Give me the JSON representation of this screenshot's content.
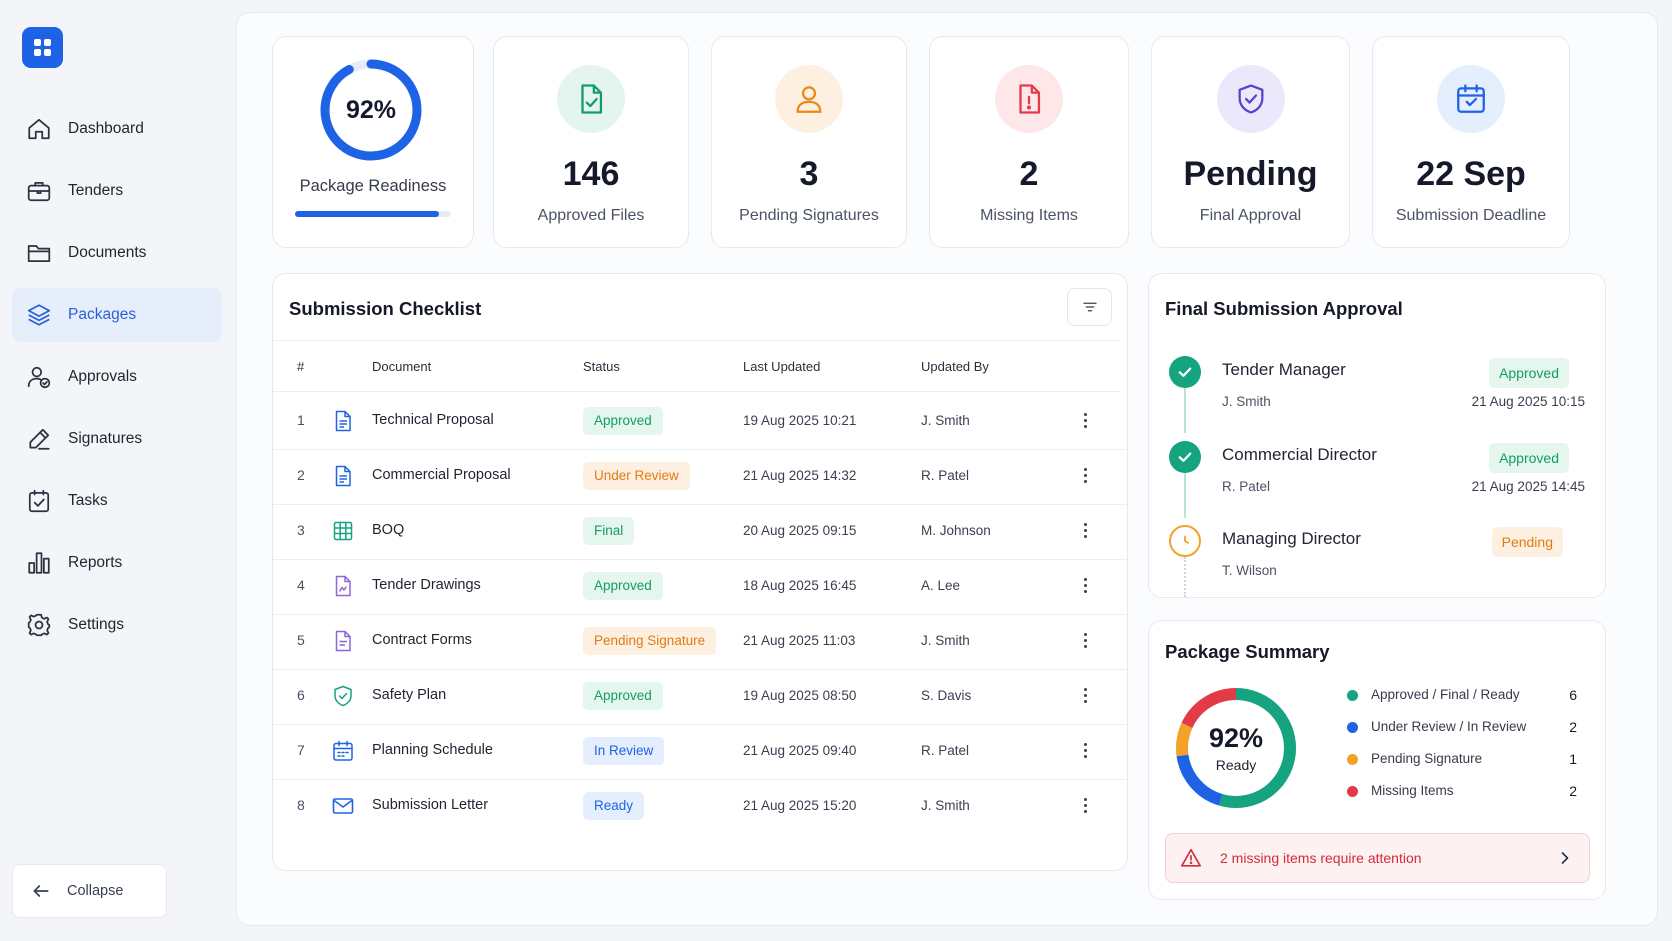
{
  "sidebar": {
    "items": [
      {
        "label": "Dashboard",
        "icon": "home-icon"
      },
      {
        "label": "Tenders",
        "icon": "briefcase-icon"
      },
      {
        "label": "Documents",
        "icon": "folder-icon"
      },
      {
        "label": "Packages",
        "icon": "layers-icon",
        "active": true
      },
      {
        "label": "Approvals",
        "icon": "user-check-icon"
      },
      {
        "label": "Signatures",
        "icon": "pen-icon"
      },
      {
        "label": "Tasks",
        "icon": "clipboard-check-icon"
      },
      {
        "label": "Reports",
        "icon": "bar-chart-icon"
      },
      {
        "label": "Settings",
        "icon": "gear-icon"
      }
    ],
    "collapse_label": "Collapse"
  },
  "kpis": {
    "readiness": {
      "value": "92%",
      "label": "Package Readiness",
      "progress": 0.92
    },
    "approved_files": {
      "value": "146",
      "label": "Approved Files"
    },
    "pending_signatures": {
      "value": "3",
      "label": "Pending Signatures"
    },
    "missing_items": {
      "value": "2",
      "label": "Missing Items"
    },
    "final_approval": {
      "value": "Pending",
      "label": "Final Approval"
    },
    "deadline": {
      "value": "22 Sep",
      "label": "Submission Deadline"
    }
  },
  "checklist": {
    "title": "Submission Checklist",
    "columns": {
      "num": "#",
      "document": "Document",
      "status": "Status",
      "updated": "Last Updated",
      "by": "Updated By"
    },
    "rows": [
      {
        "num": "1",
        "document": "Technical Proposal",
        "status": "Approved",
        "updated": "19 Aug 2025 10:21",
        "by": "J. Smith"
      },
      {
        "num": "2",
        "document": "Commercial Proposal",
        "status": "Under Review",
        "updated": "21 Aug 2025 14:32",
        "by": "R. Patel"
      },
      {
        "num": "3",
        "document": "BOQ",
        "status": "Final",
        "updated": "20 Aug 2025 09:15",
        "by": "M. Johnson"
      },
      {
        "num": "4",
        "document": "Tender Drawings",
        "status": "Approved",
        "updated": "18 Aug 2025 16:45",
        "by": "A. Lee"
      },
      {
        "num": "5",
        "document": "Contract Forms",
        "status": "Pending Signature",
        "updated": "21 Aug 2025 11:03",
        "by": "J. Smith"
      },
      {
        "num": "6",
        "document": "Safety Plan",
        "status": "Approved",
        "updated": "19 Aug 2025 08:50",
        "by": "S. Davis"
      },
      {
        "num": "7",
        "document": "Planning Schedule",
        "status": "In Review",
        "updated": "21 Aug 2025 09:40",
        "by": "R. Patel"
      },
      {
        "num": "8",
        "document": "Submission Letter",
        "status": "Ready",
        "updated": "21 Aug 2025 15:20",
        "by": "J. Smith"
      }
    ]
  },
  "approval": {
    "title": "Final Submission Approval",
    "steps": [
      {
        "role": "Tender Manager",
        "person": "J. Smith",
        "status": "Approved",
        "date": "21 Aug 2025 10:15"
      },
      {
        "role": "Commercial Director",
        "person": "R. Patel",
        "status": "Approved",
        "date": "21 Aug 2025 14:45"
      },
      {
        "role": "Managing Director",
        "person": "T. Wilson",
        "status": "Pending",
        "date": ""
      }
    ]
  },
  "summary": {
    "title": "Package Summary",
    "percent": "92%",
    "sublabel": "Ready",
    "legend": [
      {
        "label": "Approved / Final / Ready",
        "count": "6",
        "color": "#16a37f"
      },
      {
        "label": "Under Review / In Review",
        "count": "2",
        "color": "#1e63e6"
      },
      {
        "label": "Pending Signature",
        "count": "1",
        "color": "#f2a229"
      },
      {
        "label": "Missing Items",
        "count": "2",
        "color": "#e23b47"
      }
    ],
    "alert": "2 missing items require attention"
  },
  "colors": {
    "accent": "#1e63e6",
    "success": "#16a37f",
    "warning": "#f2a229",
    "danger": "#e23b47",
    "purple": "#6a4fd8"
  }
}
